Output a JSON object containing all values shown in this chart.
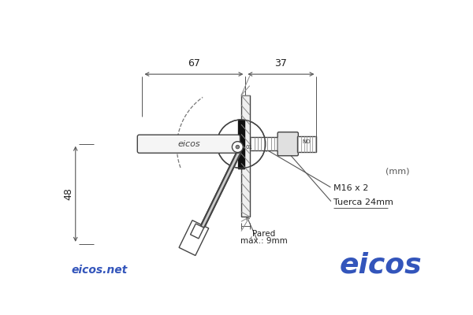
{
  "bg_color": "#ffffff",
  "line_color": "#444444",
  "dim_color": "#555555",
  "eicos_blue": "#3355bb",
  "dim_67": "67",
  "dim_37": "37",
  "dim_48": "48",
  "unit": "(mm)",
  "label_pared_1": "Pared",
  "label_pared_2": "máx.: 9mm",
  "label_m16": "M16 x 2",
  "label_tuerca": "Tuerca 24mm",
  "footer_left": "eicos.net",
  "footer_right": "eicos"
}
